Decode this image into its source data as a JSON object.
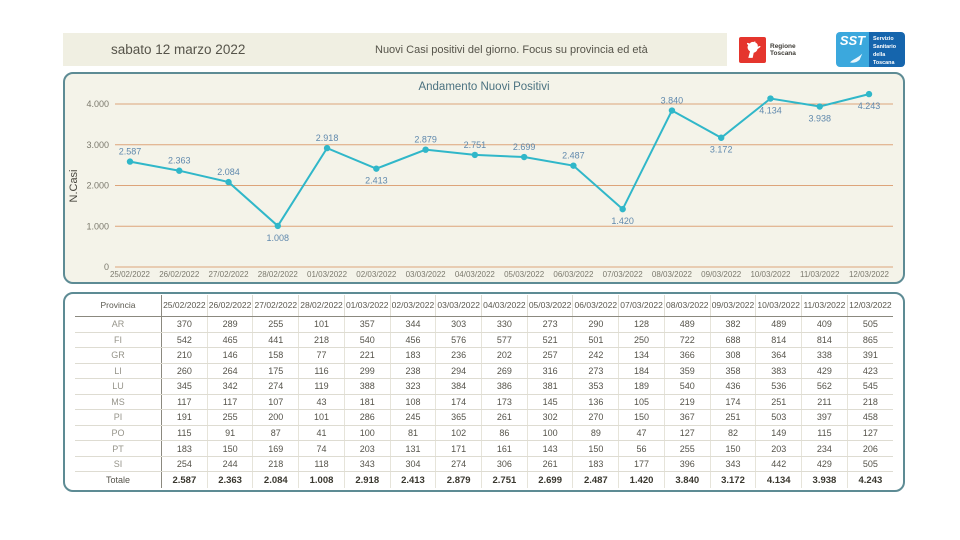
{
  "theme": {
    "header_bg": "#f0efe2",
    "panel_bg": "#f4f3e9",
    "panel_border": "#5d8b94",
    "logo_red": "#e5352d",
    "sst_light_blue": "#3ba8dd",
    "sst_dark_blue": "#1565ad"
  },
  "header": {
    "date": "sabato 12 marzo 2022",
    "title": "Nuovi Casi positivi del giorno. Focus su provincia ed età",
    "logos": {
      "regione": "Regione Toscana",
      "sst_acronym": "SST",
      "sst_name": "Servizio Sanitario della Toscana"
    }
  },
  "chart_data": {
    "type": "line",
    "title": "Andamento Nuovi Positivi",
    "ylabel": "N.Casi",
    "xlabel": "",
    "x": [
      "25/02/2022",
      "26/02/2022",
      "27/02/2022",
      "28/02/2022",
      "01/03/2022",
      "02/03/2022",
      "03/03/2022",
      "04/03/2022",
      "05/03/2022",
      "06/03/2022",
      "07/03/2022",
      "08/03/2022",
      "09/03/2022",
      "10/03/2022",
      "11/03/2022",
      "12/03/2022"
    ],
    "values": [
      2587,
      2363,
      2084,
      1008,
      2918,
      2413,
      2879,
      2751,
      2699,
      2487,
      1420,
      3840,
      3172,
      4134,
      3938,
      4243
    ],
    "value_labels": [
      "2.587",
      "2.363",
      "2.084",
      "1.008",
      "2.918",
      "2.413",
      "2.879",
      "2.751",
      "2.699",
      "2.487",
      "1.420",
      "3.840",
      "3.172",
      "4.134",
      "3.938",
      "4.243"
    ],
    "labels_below_indices": [
      3,
      5,
      10,
      12,
      13,
      14,
      15
    ],
    "ylim": [
      0,
      4000
    ],
    "yticks": [
      0,
      1000,
      2000,
      3000,
      4000
    ],
    "ytick_labels": [
      "0",
      "1.000",
      "2.000",
      "3.000",
      "4.000"
    ],
    "grid": true,
    "legend": "none",
    "colors": {
      "line": "#30b7c9",
      "grid": "#dda47a",
      "label": "#6089ad",
      "tick": "#7b796d",
      "title": "#4b7280",
      "axis_label": "#4a4840"
    }
  },
  "table": {
    "header": [
      "Provincia",
      "25/02/2022",
      "26/02/2022",
      "27/02/2022",
      "28/02/2022",
      "01/03/2022",
      "02/03/2022",
      "03/03/2022",
      "04/03/2022",
      "05/03/2022",
      "06/03/2022",
      "07/03/2022",
      "08/03/2022",
      "09/03/2022",
      "10/03/2022",
      "11/03/2022",
      "12/03/2022"
    ],
    "rows": [
      {
        "label": "AR",
        "values": [
          "370",
          "289",
          "255",
          "101",
          "357",
          "344",
          "303",
          "330",
          "273",
          "290",
          "128",
          "489",
          "382",
          "489",
          "409",
          "505"
        ]
      },
      {
        "label": "FI",
        "values": [
          "542",
          "465",
          "441",
          "218",
          "540",
          "456",
          "576",
          "577",
          "521",
          "501",
          "250",
          "722",
          "688",
          "814",
          "814",
          "865"
        ]
      },
      {
        "label": "GR",
        "values": [
          "210",
          "146",
          "158",
          "77",
          "221",
          "183",
          "236",
          "202",
          "257",
          "242",
          "134",
          "366",
          "308",
          "364",
          "338",
          "391"
        ]
      },
      {
        "label": "LI",
        "values": [
          "260",
          "264",
          "175",
          "116",
          "299",
          "238",
          "294",
          "269",
          "316",
          "273",
          "184",
          "359",
          "358",
          "383",
          "429",
          "423"
        ]
      },
      {
        "label": "LU",
        "values": [
          "345",
          "342",
          "274",
          "119",
          "388",
          "323",
          "384",
          "386",
          "381",
          "353",
          "189",
          "540",
          "436",
          "536",
          "562",
          "545"
        ]
      },
      {
        "label": "MS",
        "values": [
          "117",
          "117",
          "107",
          "43",
          "181",
          "108",
          "174",
          "173",
          "145",
          "136",
          "105",
          "219",
          "174",
          "251",
          "211",
          "218"
        ]
      },
      {
        "label": "PI",
        "values": [
          "191",
          "255",
          "200",
          "101",
          "286",
          "245",
          "365",
          "261",
          "302",
          "270",
          "150",
          "367",
          "251",
          "503",
          "397",
          "458"
        ]
      },
      {
        "label": "PO",
        "values": [
          "115",
          "91",
          "87",
          "41",
          "100",
          "81",
          "102",
          "86",
          "100",
          "89",
          "47",
          "127",
          "82",
          "149",
          "115",
          "127"
        ]
      },
      {
        "label": "PT",
        "values": [
          "183",
          "150",
          "169",
          "74",
          "203",
          "131",
          "171",
          "161",
          "143",
          "150",
          "56",
          "255",
          "150",
          "203",
          "234",
          "206"
        ]
      },
      {
        "label": "SI",
        "values": [
          "254",
          "244",
          "218",
          "118",
          "343",
          "304",
          "274",
          "306",
          "261",
          "183",
          "177",
          "396",
          "343",
          "442",
          "429",
          "505"
        ]
      }
    ],
    "total_row": {
      "label": "Totale",
      "values": [
        "2.587",
        "2.363",
        "2.084",
        "1.008",
        "2.918",
        "2.413",
        "2.879",
        "2.751",
        "2.699",
        "2.487",
        "1.420",
        "3.840",
        "3.172",
        "4.134",
        "3.938",
        "4.243"
      ]
    }
  }
}
